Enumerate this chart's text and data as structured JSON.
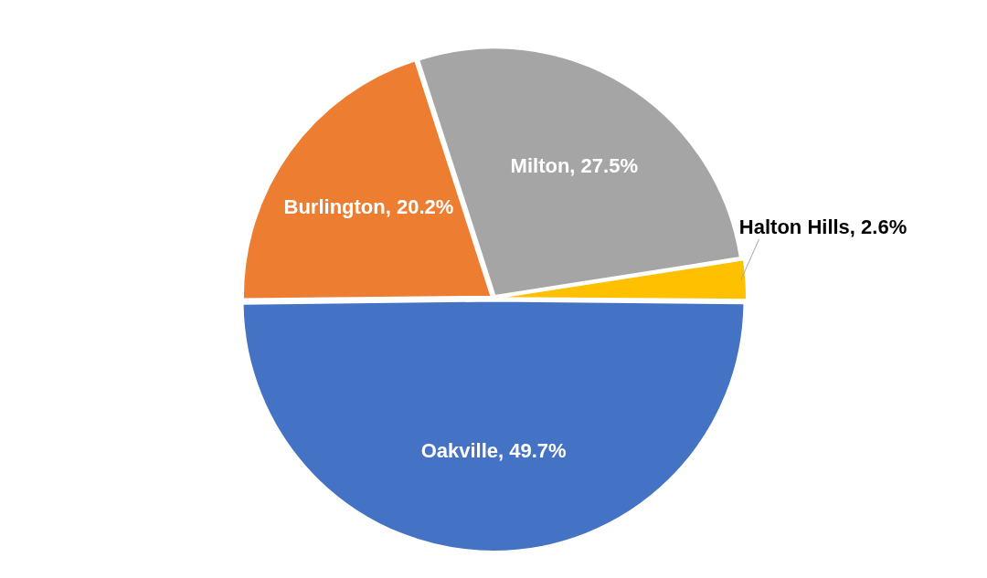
{
  "chart_data": {
    "type": "pie",
    "categories": [
      "Burlington",
      "Milton",
      "Halton Hills",
      "Oakville"
    ],
    "values": [
      20.2,
      27.5,
      2.6,
      49.7
    ],
    "colors": [
      "#ed7d31",
      "#a5a5a5",
      "#ffc000",
      "#4472c4"
    ],
    "value_labels": [
      "20.2%",
      "27.5%",
      "2.6%",
      "49.7%"
    ],
    "legend": false
  }
}
